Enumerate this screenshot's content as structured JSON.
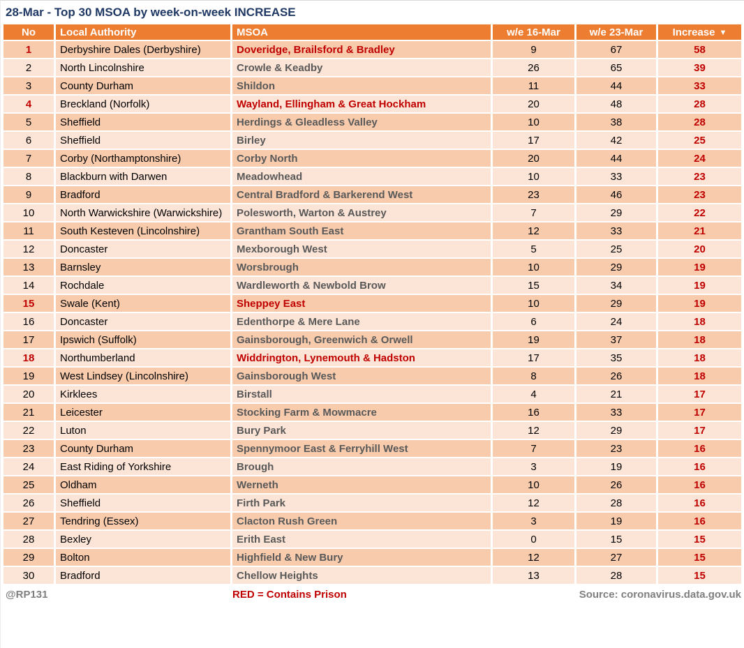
{
  "title": "28-Mar - Top 30 MSOA by week-on-week INCREASE",
  "colors": {
    "header_bg": "#ed7d31",
    "row_odd": "#f8cbad",
    "row_even": "#fce4d6",
    "prison_red": "#c00000",
    "title_navy": "#1f3864",
    "msoa_gray": "#595959",
    "footer_gray": "#7f7f7f"
  },
  "chart_data": {
    "type": "table",
    "title": "28-Mar - Top 30 MSOA by week-on-week INCREASE",
    "sort": {
      "column": "Increase",
      "direction": "descending"
    },
    "columns": [
      {
        "label": "No"
      },
      {
        "label": "Local Authority"
      },
      {
        "label": "MSOA"
      },
      {
        "label": "w/e 16-Mar"
      },
      {
        "label": "w/e 23-Mar"
      },
      {
        "label": "Increase",
        "sort_icon": "▼"
      }
    ],
    "legend_note": "RED = Contains Prison (red rows contain a prison)",
    "rows": [
      {
        "no": 1,
        "local_authority": "Derbyshire Dales (Derbyshire)",
        "msoa": "Doveridge, Brailsford & Bradley",
        "we_16_mar": 9,
        "we_23_mar": 67,
        "increase": 58,
        "prison": true
      },
      {
        "no": 2,
        "local_authority": "North Lincolnshire",
        "msoa": "Crowle & Keadby",
        "we_16_mar": 26,
        "we_23_mar": 65,
        "increase": 39,
        "prison": false
      },
      {
        "no": 3,
        "local_authority": "County Durham",
        "msoa": "Shildon",
        "we_16_mar": 11,
        "we_23_mar": 44,
        "increase": 33,
        "prison": false
      },
      {
        "no": 4,
        "local_authority": "Breckland (Norfolk)",
        "msoa": "Wayland, Ellingham & Great Hockham",
        "we_16_mar": 20,
        "we_23_mar": 48,
        "increase": 28,
        "prison": true
      },
      {
        "no": 5,
        "local_authority": "Sheffield",
        "msoa": "Herdings & Gleadless Valley",
        "we_16_mar": 10,
        "we_23_mar": 38,
        "increase": 28,
        "prison": false
      },
      {
        "no": 6,
        "local_authority": "Sheffield",
        "msoa": "Birley",
        "we_16_mar": 17,
        "we_23_mar": 42,
        "increase": 25,
        "prison": false
      },
      {
        "no": 7,
        "local_authority": "Corby (Northamptonshire)",
        "msoa": "Corby North",
        "we_16_mar": 20,
        "we_23_mar": 44,
        "increase": 24,
        "prison": false
      },
      {
        "no": 8,
        "local_authority": "Blackburn with Darwen",
        "msoa": "Meadowhead",
        "we_16_mar": 10,
        "we_23_mar": 33,
        "increase": 23,
        "prison": false
      },
      {
        "no": 9,
        "local_authority": "Bradford",
        "msoa": "Central Bradford & Barkerend West",
        "we_16_mar": 23,
        "we_23_mar": 46,
        "increase": 23,
        "prison": false
      },
      {
        "no": 10,
        "local_authority": "North Warwickshire (Warwickshire)",
        "msoa": "Polesworth, Warton & Austrey",
        "we_16_mar": 7,
        "we_23_mar": 29,
        "increase": 22,
        "prison": false
      },
      {
        "no": 11,
        "local_authority": "South Kesteven (Lincolnshire)",
        "msoa": "Grantham South East",
        "we_16_mar": 12,
        "we_23_mar": 33,
        "increase": 21,
        "prison": false
      },
      {
        "no": 12,
        "local_authority": "Doncaster",
        "msoa": "Mexborough West",
        "we_16_mar": 5,
        "we_23_mar": 25,
        "increase": 20,
        "prison": false
      },
      {
        "no": 13,
        "local_authority": "Barnsley",
        "msoa": "Worsbrough",
        "we_16_mar": 10,
        "we_23_mar": 29,
        "increase": 19,
        "prison": false
      },
      {
        "no": 14,
        "local_authority": "Rochdale",
        "msoa": "Wardleworth & Newbold Brow",
        "we_16_mar": 15,
        "we_23_mar": 34,
        "increase": 19,
        "prison": false
      },
      {
        "no": 15,
        "local_authority": "Swale (Kent)",
        "msoa": "Sheppey East",
        "we_16_mar": 10,
        "we_23_mar": 29,
        "increase": 19,
        "prison": true
      },
      {
        "no": 16,
        "local_authority": "Doncaster",
        "msoa": "Edenthorpe & Mere Lane",
        "we_16_mar": 6,
        "we_23_mar": 24,
        "increase": 18,
        "prison": false
      },
      {
        "no": 17,
        "local_authority": "Ipswich (Suffolk)",
        "msoa": "Gainsborough, Greenwich & Orwell",
        "we_16_mar": 19,
        "we_23_mar": 37,
        "increase": 18,
        "prison": false
      },
      {
        "no": 18,
        "local_authority": "Northumberland",
        "msoa": "Widdrington, Lynemouth & Hadston",
        "we_16_mar": 17,
        "we_23_mar": 35,
        "increase": 18,
        "prison": true
      },
      {
        "no": 19,
        "local_authority": "West Lindsey (Lincolnshire)",
        "msoa": "Gainsborough West",
        "we_16_mar": 8,
        "we_23_mar": 26,
        "increase": 18,
        "prison": false
      },
      {
        "no": 20,
        "local_authority": "Kirklees",
        "msoa": "Birstall",
        "we_16_mar": 4,
        "we_23_mar": 21,
        "increase": 17,
        "prison": false
      },
      {
        "no": 21,
        "local_authority": "Leicester",
        "msoa": "Stocking Farm & Mowmacre",
        "we_16_mar": 16,
        "we_23_mar": 33,
        "increase": 17,
        "prison": false
      },
      {
        "no": 22,
        "local_authority": "Luton",
        "msoa": "Bury Park",
        "we_16_mar": 12,
        "we_23_mar": 29,
        "increase": 17,
        "prison": false
      },
      {
        "no": 23,
        "local_authority": "County Durham",
        "msoa": "Spennymoor East & Ferryhill West",
        "we_16_mar": 7,
        "we_23_mar": 23,
        "increase": 16,
        "prison": false
      },
      {
        "no": 24,
        "local_authority": "East Riding of Yorkshire",
        "msoa": "Brough",
        "we_16_mar": 3,
        "we_23_mar": 19,
        "increase": 16,
        "prison": false
      },
      {
        "no": 25,
        "local_authority": "Oldham",
        "msoa": "Werneth",
        "we_16_mar": 10,
        "we_23_mar": 26,
        "increase": 16,
        "prison": false
      },
      {
        "no": 26,
        "local_authority": "Sheffield",
        "msoa": "Firth Park",
        "we_16_mar": 12,
        "we_23_mar": 28,
        "increase": 16,
        "prison": false
      },
      {
        "no": 27,
        "local_authority": "Tendring (Essex)",
        "msoa": "Clacton Rush Green",
        "we_16_mar": 3,
        "we_23_mar": 19,
        "increase": 16,
        "prison": false
      },
      {
        "no": 28,
        "local_authority": "Bexley",
        "msoa": "Erith East",
        "we_16_mar": 0,
        "we_23_mar": 15,
        "increase": 15,
        "prison": false
      },
      {
        "no": 29,
        "local_authority": "Bolton",
        "msoa": "Highfield & New Bury",
        "we_16_mar": 12,
        "we_23_mar": 27,
        "increase": 15,
        "prison": false
      },
      {
        "no": 30,
        "local_authority": "Bradford",
        "msoa": "Chellow Heights",
        "we_16_mar": 13,
        "we_23_mar": 28,
        "increase": 15,
        "prison": false
      }
    ]
  },
  "footer": {
    "handle": "@RP131",
    "legend": "RED = Contains Prison",
    "source": "Source: coronavirus.data.gov.uk"
  }
}
